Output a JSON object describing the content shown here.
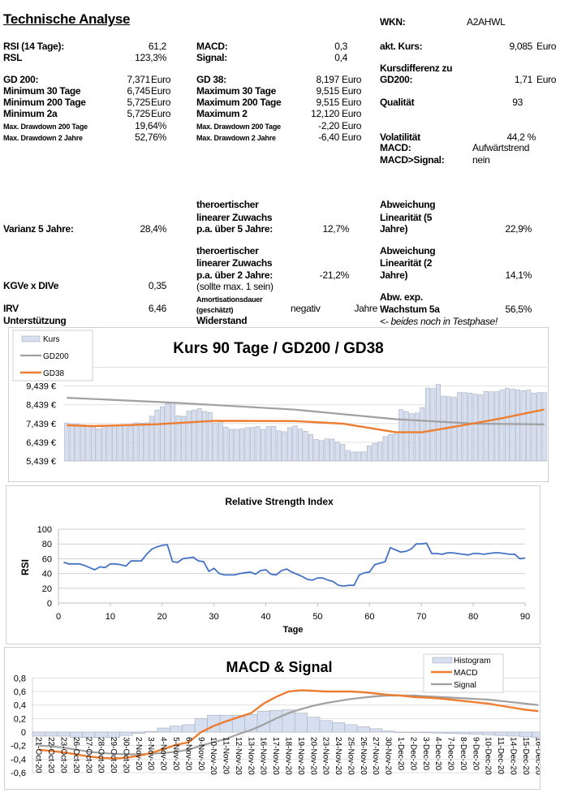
{
  "title": "Technische Analyse",
  "wkn": {
    "label": "WKN:",
    "value": "A2AHWL"
  },
  "col1": [
    {
      "label": "RSI (14 Tage):",
      "value": "61,2"
    },
    {
      "label": "RSL",
      "value": "123,3%"
    },
    {
      "label": "GD 200:",
      "value": "7,371",
      "unit": "Euro"
    },
    {
      "label": "Minimum 30 Tage",
      "value": "6,745",
      "unit": "Euro"
    },
    {
      "label": "Minimum 200 Tage",
      "value": "5,725",
      "unit": "Euro"
    },
    {
      "label": "Minimum 2a",
      "value": "5,725",
      "unit": "Euro"
    },
    {
      "label": "Max. Drawdown 200 Tage",
      "value": "19,64%"
    },
    {
      "label": "Max. Drawdown 2 Jahre",
      "value": "52,76%"
    }
  ],
  "col2": [
    {
      "label": "MACD:",
      "value": "0,3"
    },
    {
      "label": "Signal:",
      "value": "0,4"
    },
    {
      "label": "GD 38:",
      "value": "8,197",
      "unit": "Euro"
    },
    {
      "label": "Maximum 30 Tage",
      "value": "9,515",
      "unit": "Euro"
    },
    {
      "label": "Maximum 200 Tage",
      "value": "9,515",
      "unit": "Euro"
    },
    {
      "label": "Maximum 2",
      "value": "12,120",
      "unit": "Euro"
    },
    {
      "label": "Max. Drawdown 200 Tage",
      "value": "-2,20",
      "unit": "Euro"
    },
    {
      "label": "Max. Drawdown 2 Jahre",
      "value": "-6,40",
      "unit": "Euro"
    }
  ],
  "col3": {
    "kurs": {
      "label": "akt. Kurs:",
      "value": "9,085",
      "unit": "Euro"
    },
    "kursdiff": {
      "label1": "Kursdifferenz zu",
      "label2": "GD200:",
      "value": "1,71",
      "unit": "Euro"
    },
    "qualitaet": {
      "label": "Qualität",
      "value": "93"
    },
    "volatilitaet": {
      "label": "Volatilität",
      "value": "44,2 %"
    },
    "macd": {
      "label": "MACD:",
      "value": "Aufwärtstrend"
    },
    "macd_signal": {
      "label": "MACD>Signal:",
      "value": "nein"
    }
  },
  "lower": {
    "varianz": {
      "label": "Varianz 5 Jahre:",
      "value": "28,4%"
    },
    "kgve": {
      "label": "KGVe x DIVe",
      "value": "0,35"
    },
    "irv": {
      "label": "IRV",
      "value": "6,46"
    },
    "unterstuetzung": {
      "label": "Unterstützung"
    },
    "zuwachs5": {
      "l1": "theroertischer",
      "l2": "linearer Zuwachs",
      "l3": "p.a. über 5 Jahre:",
      "value": "12,7%"
    },
    "zuwachs2": {
      "l1": "theroertischer",
      "l2": "linearer Zuwachs",
      "l3": "p.a. über 2 Jahre:",
      "l4": "(sollte max. 1 sein)",
      "value": "-21,2%"
    },
    "amort": {
      "l1": "Amortisationsdauer",
      "l2": "(geschätzt)",
      "value": "negativ",
      "unit": "Jahre"
    },
    "widerstand": {
      "label": "Widerstand"
    },
    "abw5": {
      "l1": "Abweichung",
      "l2": "Linearität (5",
      "l3": "Jahre)",
      "value": "22,9%"
    },
    "abw2": {
      "l1": "Abweichung",
      "l2": "Linearität (2",
      "l3": "Jahre)",
      "value": "14,1%"
    },
    "abwexp": {
      "l1": "Abw. exp.",
      "l2": "Wachstum 5a",
      "value": "56,5%"
    },
    "note": "<- beides noch in Testphase!"
  },
  "colors": {
    "bar_fill": "#d6dff0",
    "bar_stroke": "#a6aebd",
    "gd200": "#a0a0a0",
    "gd38": "#ed7d31",
    "rsi": "#4472c4",
    "grid": "#e0e0e0"
  },
  "chart_data": [
    {
      "type": "bar",
      "title": "Kurs 90 Tage / GD200 / GD38",
      "legend": [
        "Kurs",
        "GD200",
        "GD38"
      ],
      "legend_placement": "top-left",
      "yticks": [
        "5,439 €",
        "6,439 €",
        "7,439 €",
        "8,439 €",
        "9,439 €"
      ],
      "ylim": [
        5.439,
        10.439
      ],
      "grid": true,
      "kurs": [
        7.47,
        7.4,
        7.4,
        7.37,
        7.33,
        7.3,
        7.15,
        7.3,
        7.3,
        7.37,
        7.35,
        7.33,
        7.3,
        7.48,
        7.46,
        7.48,
        7.83,
        8.16,
        8.33,
        8.5,
        8.55,
        7.85,
        7.82,
        8.1,
        8.15,
        8.23,
        8.08,
        8.03,
        7.45,
        7.55,
        7.25,
        7.13,
        7.13,
        7.15,
        7.22,
        7.23,
        7.28,
        7.13,
        7.28,
        7.28,
        7.05,
        7.0,
        7.22,
        7.31,
        7.14,
        7.03,
        6.85,
        6.59,
        6.53,
        6.62,
        6.61,
        6.45,
        6.33,
        6.0,
        5.92,
        5.92,
        5.93,
        6.25,
        6.38,
        6.45,
        6.74,
        6.85,
        6.88,
        8.18,
        8.08,
        7.96,
        8.0,
        8.29,
        9.33,
        9.31,
        9.52,
        8.9,
        8.87,
        8.83,
        9.09,
        9.09,
        9.06,
        9.0,
        8.97,
        9.15,
        9.13,
        9.13,
        9.22,
        9.31,
        9.27,
        9.23,
        9.19,
        9.22,
        9.06,
        9.09,
        9.09
      ],
      "gd200": {
        "day": [
          1,
          21,
          44,
          63,
          78,
          91
        ],
        "value": [
          8.81,
          8.55,
          8.18,
          7.67,
          7.43,
          7.39
        ]
      },
      "gd38": {
        "day": [
          1,
          6,
          18,
          29,
          44,
          53,
          63,
          68,
          73,
          78,
          83,
          88,
          91
        ],
        "value": [
          7.35,
          7.3,
          7.4,
          7.58,
          7.57,
          7.43,
          6.97,
          6.97,
          7.22,
          7.46,
          7.72,
          8.01,
          8.19
        ]
      }
    },
    {
      "type": "line",
      "title": "Relative Strength Index",
      "xlabel": "Tage",
      "ylabel": "RSI",
      "xlim": [
        0,
        90
      ],
      "ylim": [
        0,
        100
      ],
      "xticks": [
        0,
        10,
        20,
        30,
        40,
        50,
        60,
        70,
        80,
        90
      ],
      "yticks": [
        0,
        20,
        40,
        60,
        80,
        100
      ],
      "grid": true,
      "values": [
        55,
        53,
        53,
        53,
        51,
        48,
        45,
        49,
        48,
        53,
        53,
        52,
        50,
        57,
        57,
        57,
        66,
        73,
        76,
        78,
        79,
        56,
        55,
        60,
        61,
        62,
        57,
        56,
        43,
        47,
        40,
        38,
        38,
        38,
        40,
        41,
        42,
        39,
        44,
        45,
        39,
        38,
        44,
        46,
        42,
        39,
        36,
        32,
        31,
        34,
        34,
        31,
        29,
        24,
        23,
        24,
        24,
        38,
        41,
        42,
        52,
        54,
        56,
        75,
        72,
        69,
        70,
        73,
        80,
        80,
        81,
        67,
        67,
        66,
        68,
        68,
        67,
        66,
        65,
        67,
        67,
        66,
        67,
        68,
        68,
        67,
        66,
        66,
        60,
        61
      ]
    },
    {
      "type": "bar",
      "title": "MACD & Signal",
      "legend": [
        "Histogram",
        "MACD",
        "Signal"
      ],
      "legend_placement": "top-right",
      "ylim": [
        -0.6,
        0.8
      ],
      "yticks": [
        "-0,6",
        "-0,4",
        "-0,2",
        "0",
        "0,2",
        "0,4",
        "0,6",
        "0,8"
      ],
      "grid": true,
      "categories": [
        "21-Oct-20",
        "22-Oct-20",
        "23-Oct-20",
        "26-Oct-20",
        "27-Oct-20",
        "28-Oct-20",
        "29-Oct-20",
        "30-Oct-20",
        "2-Nov-20",
        "3-Nov-20",
        "4-Nov-20",
        "5-Nov-20",
        "6-Nov-20",
        "9-Nov-20",
        "10-Nov-20",
        "11-Nov-20",
        "12-Nov-20",
        "13-Nov-20",
        "16-Nov-20",
        "17-Nov-20",
        "18-Nov-20",
        "19-Nov-20",
        "20-Nov-20",
        "23-Nov-20",
        "24-Nov-20",
        "25-Nov-20",
        "26-Nov-20",
        "27-Nov-20",
        "30-Nov-20",
        "1-Dec-20",
        "2-Dec-20",
        "3-Dec-20",
        "4-Dec-20",
        "7-Dec-20",
        "8-Dec-20",
        "9-Dec-20",
        "10-Dec-20",
        "11-Dec-20",
        "14-Dec-20",
        "15-Dec-20",
        "16-Dec-20"
      ],
      "histogram": [
        -0.06,
        -0.06,
        -0.06,
        -0.08,
        -0.08,
        -0.08,
        -0.08,
        -0.05,
        -0.02,
        0.01,
        0.06,
        0.09,
        0.11,
        0.2,
        0.25,
        0.25,
        0.25,
        0.26,
        0.31,
        0.32,
        0.33,
        0.28,
        0.22,
        0.17,
        0.14,
        0.11,
        0.08,
        0.05,
        0.015,
        0.0,
        -0.005,
        -0.01,
        -0.015,
        -0.02,
        -0.025,
        -0.03,
        -0.04,
        -0.05,
        -0.06,
        -0.07,
        -0.08
      ],
      "macd": [
        -0.26,
        -0.28,
        -0.3,
        -0.33,
        -0.36,
        -0.38,
        -0.39,
        -0.38,
        -0.35,
        -0.31,
        -0.25,
        -0.19,
        -0.15,
        0.0,
        0.09,
        0.16,
        0.22,
        0.28,
        0.42,
        0.52,
        0.6,
        0.62,
        0.61,
        0.6,
        0.6,
        0.6,
        0.59,
        0.57,
        0.55,
        0.54,
        0.52,
        0.51,
        0.5,
        0.48,
        0.46,
        0.44,
        0.42,
        0.39,
        0.36,
        0.33,
        0.31
      ],
      "signal": [
        -0.2,
        -0.21,
        -0.23,
        -0.26,
        -0.29,
        -0.31,
        -0.32,
        -0.33,
        -0.33,
        -0.32,
        -0.31,
        -0.29,
        -0.26,
        -0.2,
        -0.15,
        -0.1,
        -0.03,
        0.03,
        0.11,
        0.2,
        0.28,
        0.34,
        0.39,
        0.43,
        0.46,
        0.49,
        0.51,
        0.53,
        0.54,
        0.54,
        0.54,
        0.53,
        0.52,
        0.51,
        0.5,
        0.49,
        0.48,
        0.46,
        0.44,
        0.42,
        0.4
      ]
    }
  ]
}
